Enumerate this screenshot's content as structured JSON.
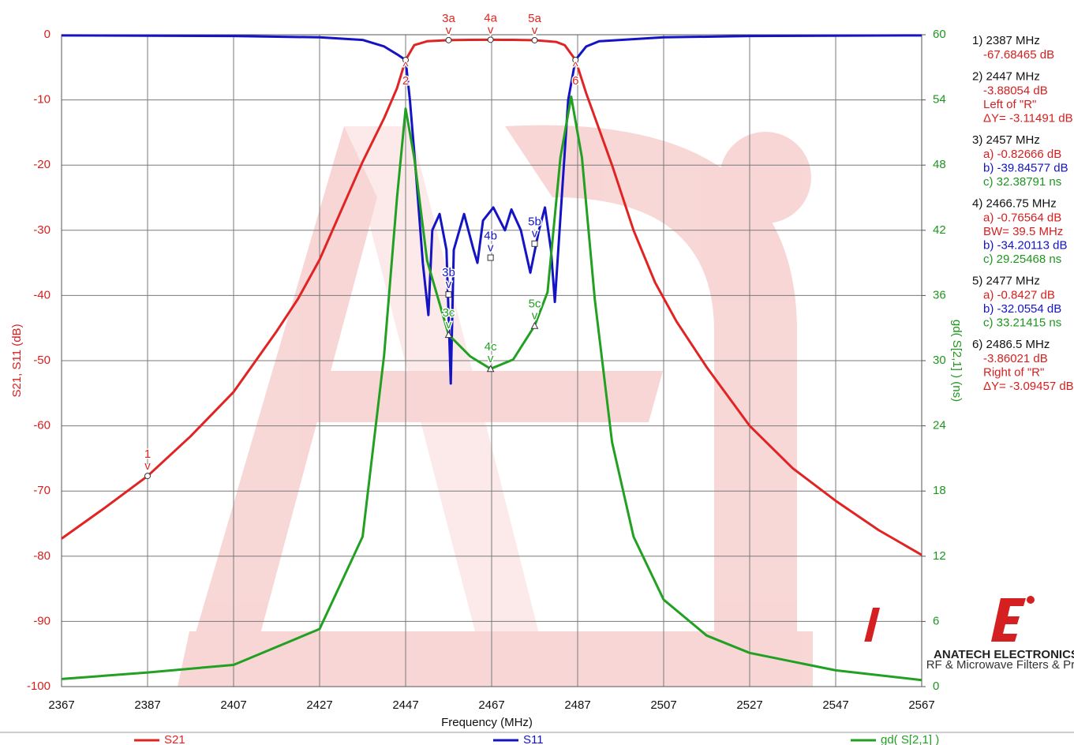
{
  "chart_data": {
    "type": "line",
    "xlabel": "Frequency (MHz)",
    "ylabel": "S21, S11 (dB)",
    "y2label": "gd( S[2,1] ) (ns)",
    "xlim": [
      2367,
      2567
    ],
    "xticks": [
      2367,
      2387,
      2407,
      2427,
      2447,
      2467,
      2487,
      2507,
      2527,
      2547,
      2567
    ],
    "ylim": [
      -100,
      0
    ],
    "yticks": [
      -100,
      -90,
      -80,
      -70,
      -60,
      -50,
      -40,
      -30,
      -20,
      -10,
      0
    ],
    "y2lim": [
      0,
      60
    ],
    "y2ticks": [
      0,
      6,
      12,
      18,
      24,
      30,
      36,
      42,
      48,
      54,
      60
    ],
    "grid": true,
    "series": [
      {
        "name": "S21",
        "color": "#e02424",
        "symbol": "circle",
        "x": [
          2367,
          2377,
          2387,
          2397,
          2407,
          2417,
          2422,
          2427,
          2432,
          2437,
          2442,
          2445,
          2447,
          2449,
          2452,
          2457,
          2462,
          2466.75,
          2472,
          2477,
          2482,
          2484,
          2486.5,
          2489,
          2492,
          2495,
          2500,
          2505,
          2510,
          2517,
          2527,
          2537,
          2547,
          2557,
          2567
        ],
        "values": [
          -77.3,
          -72.6,
          -67.7,
          -61.6,
          -54.8,
          -45.5,
          -40.5,
          -34.5,
          -27,
          -19.5,
          -12.8,
          -8.2,
          -3.88,
          -1.6,
          -1.0,
          -0.83,
          -0.79,
          -0.77,
          -0.79,
          -0.84,
          -1.1,
          -1.6,
          -3.86,
          -9,
          -14.5,
          -20,
          -30,
          -38,
          -44,
          -51,
          -60,
          -66.5,
          -71.5,
          -76,
          -79.8
        ]
      },
      {
        "name": "S11",
        "color": "#1414c4",
        "symbol": "square",
        "x": [
          2367,
          2407,
          2427,
          2437,
          2442,
          2445,
          2447,
          2448,
          2449.5,
          2451,
          2452.3,
          2453.2,
          2454.9,
          2456.5,
          2457.5,
          2458.2,
          2460.6,
          2462.8,
          2463.7,
          2465,
          2467.4,
          2470.1,
          2471.6,
          2473.8,
          2476,
          2478,
          2479.4,
          2480.8,
          2481.7,
          2483,
          2484.8,
          2486.5,
          2489,
          2492,
          2507,
          2527,
          2567
        ],
        "values": [
          -0.1,
          -0.2,
          -0.4,
          -0.8,
          -1.8,
          -3,
          -3.88,
          -10,
          -22,
          -35,
          -43,
          -30,
          -27.5,
          -33,
          -53.5,
          -33,
          -27.5,
          -33,
          -35,
          -28.5,
          -26.5,
          -30,
          -26.8,
          -30,
          -36.5,
          -30,
          -26.5,
          -33,
          -41,
          -28,
          -10,
          -3.86,
          -1.8,
          -1,
          -0.4,
          -0.2,
          -0.1
        ]
      },
      {
        "name": "gd( S[2,1] )",
        "color": "#22a022",
        "symbol": "triangle",
        "axis": "y2",
        "x": [
          2367,
          2387,
          2407,
          2427,
          2437,
          2442,
          2445,
          2447,
          2449,
          2452,
          2457,
          2462,
          2466.75,
          2472,
          2477,
          2480,
          2483,
          2485.5,
          2488,
          2491,
          2495,
          2500,
          2507,
          2517,
          2527,
          2547,
          2567
        ],
        "values": [
          0.7,
          1.3,
          2.0,
          5.3,
          13.8,
          30.5,
          45,
          53.2,
          48.7,
          39.2,
          32.39,
          30.4,
          29.25,
          30.1,
          33.21,
          36.3,
          48.7,
          54.3,
          48.7,
          35.6,
          22.5,
          13.8,
          8,
          4.7,
          3.1,
          1.5,
          0.6
        ]
      }
    ],
    "markers": [
      {
        "label": "1",
        "pointer": "v",
        "x": 2387,
        "y": -67.68465,
        "series": 0
      },
      {
        "label": "2",
        "pointer": "^",
        "x": 2447,
        "y": -3.88054,
        "series": 0
      },
      {
        "label": "3a",
        "pointer": "v",
        "x": 2457,
        "y": -0.82666,
        "series": 0
      },
      {
        "label": "3b",
        "pointer": "v",
        "x": 2457,
        "y": -39.84577,
        "series": 1
      },
      {
        "label": "3c",
        "pointer": "v",
        "x": 2457,
        "y": 32.38791,
        "series": 2
      },
      {
        "label": "4a",
        "pointer": "v",
        "x": 2466.75,
        "y": -0.76564,
        "series": 0
      },
      {
        "label": "4b",
        "pointer": "v",
        "x": 2466.75,
        "y": -34.20113,
        "series": 1
      },
      {
        "label": "4c",
        "pointer": "v",
        "x": 2466.75,
        "y": 29.25468,
        "series": 2
      },
      {
        "label": "5a",
        "pointer": "v",
        "x": 2477,
        "y": -0.8427,
        "series": 0
      },
      {
        "label": "5b",
        "pointer": "v",
        "x": 2477,
        "y": -32.0554,
        "series": 1
      },
      {
        "label": "5c",
        "pointer": "v",
        "x": 2477,
        "y": 33.21415,
        "series": 2
      },
      {
        "label": "6",
        "pointer": "^",
        "x": 2486.5,
        "y": -3.86021,
        "series": 0
      }
    ],
    "readout": [
      {
        "header": "1) 2387 MHz",
        "lines": [
          {
            "text": "-67.68465 dB",
            "color": "#d42020"
          }
        ]
      },
      {
        "header": "2) 2447 MHz",
        "lines": [
          {
            "text": "-3.88054 dB",
            "color": "#d42020"
          },
          {
            "text": "Left of \"R\"",
            "color": "#d42020"
          },
          {
            "text": "ΔY= -3.11491 dB",
            "color": "#d42020"
          }
        ]
      },
      {
        "header": "3) 2457 MHz",
        "lines": [
          {
            "text": "a) -0.82666 dB",
            "color": "#d42020"
          },
          {
            "text": "b) -39.84577 dB",
            "color": "#1414c4"
          },
          {
            "text": "c) 32.38791 ns",
            "color": "#1e961e"
          }
        ]
      },
      {
        "header": "4) 2466.75 MHz",
        "lines": [
          {
            "text": "a) -0.76564 dB",
            "color": "#d42020"
          },
          {
            "text": "BW= 39.5 MHz",
            "color": "#d42020"
          },
          {
            "text": "b) -34.20113 dB",
            "color": "#1414c4"
          },
          {
            "text": "c) 29.25468 ns",
            "color": "#1e961e"
          }
        ]
      },
      {
        "header": "5) 2477 MHz",
        "lines": [
          {
            "text": "a) -0.8427 dB",
            "color": "#d42020"
          },
          {
            "text": "b) -32.0554 dB",
            "color": "#1414c4"
          },
          {
            "text": "c) 33.21415 ns",
            "color": "#1e961e"
          }
        ]
      },
      {
        "header": "6) 2486.5 MHz",
        "lines": [
          {
            "text": "-3.86021 dB",
            "color": "#d42020"
          },
          {
            "text": "Right of \"R\"",
            "color": "#d42020"
          },
          {
            "text": "ΔY= -3.09457 dB",
            "color": "#d42020"
          }
        ]
      }
    ],
    "logo": {
      "name": "ANATECH ELECTRONICS INC",
      "tagline": "RF & Microwave Filters & Products"
    }
  }
}
